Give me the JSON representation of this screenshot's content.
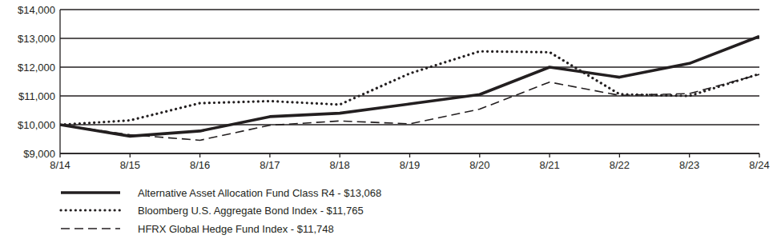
{
  "chart_data": {
    "type": "line",
    "categories": [
      "8/14",
      "8/15",
      "8/16",
      "8/17",
      "8/18",
      "8/19",
      "8/20",
      "8/21",
      "8/22",
      "8/23",
      "8/24"
    ],
    "series": [
      {
        "name": "Alternative Asset Allocation Fund Class R4 - $13,068",
        "color": "#231f20",
        "line_style": "solid",
        "values": [
          10000,
          9600,
          9780,
          10280,
          10400,
          10720,
          11050,
          12000,
          11650,
          12130,
          13068
        ]
      },
      {
        "name": "Bloomberg U.S. Aggregate Bond Index - $11,765",
        "color": "#231f20",
        "line_style": "dotted",
        "values": [
          10000,
          10150,
          10750,
          10820,
          10700,
          11780,
          12550,
          12520,
          11060,
          11000,
          11765
        ]
      },
      {
        "name": "HFRX Global Hedge Fund Index - $11,748",
        "color": "#231f20",
        "line_style": "dashed",
        "values": [
          10000,
          9650,
          9460,
          9980,
          10130,
          10030,
          10540,
          11480,
          11020,
          11080,
          11748
        ]
      }
    ],
    "ylim": [
      9000,
      14000
    ],
    "yticks": [
      {
        "value": 9000,
        "label": "$9,000"
      },
      {
        "value": 10000,
        "label": "$10,000"
      },
      {
        "value": 11000,
        "label": "$11,000"
      },
      {
        "value": 12000,
        "label": "$12,000"
      },
      {
        "value": 13000,
        "label": "$13,000"
      },
      {
        "value": 14000,
        "label": "$14,000"
      }
    ],
    "grid": true,
    "legend": "bottom"
  }
}
